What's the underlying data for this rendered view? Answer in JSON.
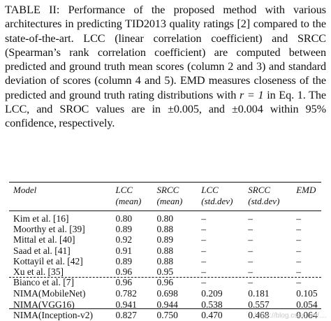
{
  "caption": {
    "label": "TABLE II:",
    "text_1": "Performance of the proposed method with various architectures in predicting TID2013 quality ratings [2] compared to the state-of-the-art. LCC (linear correlation coefficient) and SRCC (Spearman’s rank correlation coefficient) are computed between predicted and ground truth mean scores (column 2 and 3) and standard deviation of scores (column 4 and 5). EMD measures closeness of the predicted and ground truth rating distributions with",
    "math": "r = 1",
    "text_2": "in Eq. 1. The LCC, and SROC values are in ±0.005, and ±0.004 within 95% confidence, respectively."
  },
  "table": {
    "headers": [
      {
        "line1": "Model",
        "line2": ""
      },
      {
        "line1": "LCC",
        "line2": "(mean)"
      },
      {
        "line1": "SRCC",
        "line2": "(mean)"
      },
      {
        "line1": "LCC",
        "line2": "(std.dev)"
      },
      {
        "line1": "SRCC",
        "line2": "(std.dev)"
      },
      {
        "line1": "EMD",
        "line2": ""
      }
    ],
    "rows": [
      [
        "Kim et al. [16]",
        "0.80",
        "0.80",
        "–",
        "–",
        "–"
      ],
      [
        "Moorthy et al. [39]",
        "0.89",
        "0.88",
        "–",
        "–",
        "–"
      ],
      [
        "Mittal et al. [40]",
        "0.92",
        "0.89",
        "–",
        "–",
        "–"
      ],
      [
        "Saad et al. [41]",
        "0.91",
        "0.88",
        "–",
        "–",
        "–"
      ],
      [
        "Kottayil et al. [42]",
        "0.89",
        "0.88",
        "–",
        "–",
        "–"
      ],
      [
        "Xu et al. [35]",
        "0.96",
        "0.95",
        "–",
        "–",
        "–"
      ],
      [
        "Bianco et al. [7]",
        "0.96",
        "0.96",
        "–",
        "–",
        "–"
      ],
      [
        "NIMA(MobileNet)",
        "0.782",
        "0.698",
        "0.209",
        "0.181",
        "0.105"
      ],
      [
        "NIMA(VGG16)",
        "0.941",
        "0.944",
        "0.538",
        "0.557",
        "0.054"
      ],
      [
        "NIMA(Inception-v2)",
        "0.827",
        "0.750",
        "0.470",
        "0.468",
        "0.064"
      ]
    ]
  },
  "watermark": "https://blog.csdn.net/...."
}
